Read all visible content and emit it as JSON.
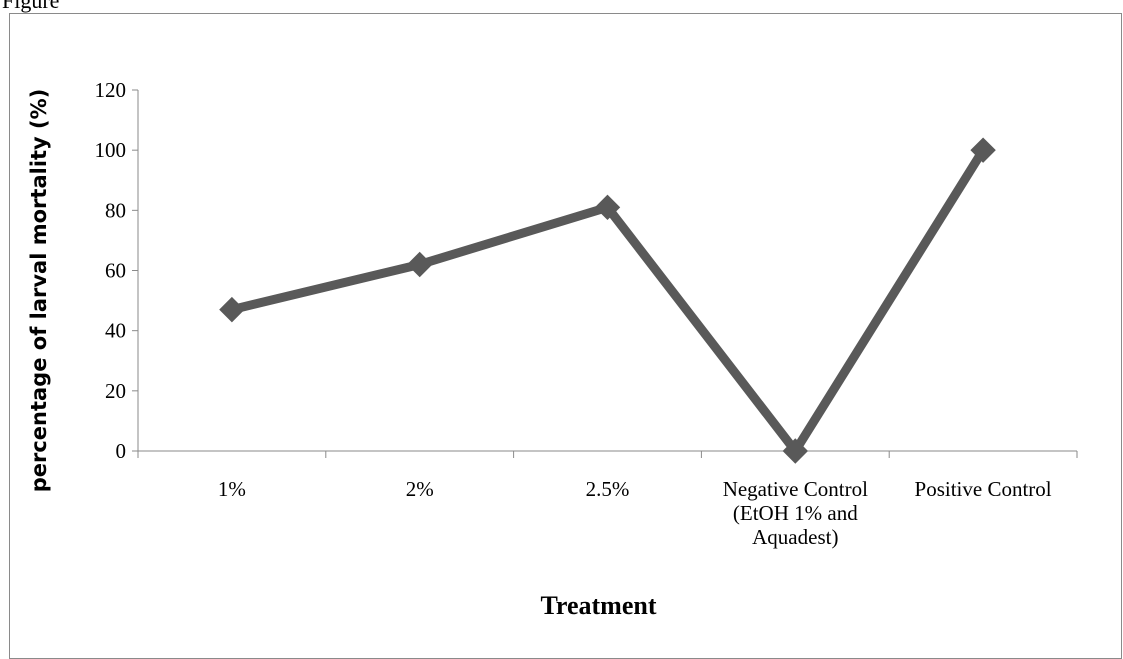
{
  "page": {
    "caption": "Figure"
  },
  "chart_data": {
    "type": "line",
    "categories": [
      "1%",
      "2%",
      "2.5%",
      "Negative Control (EtOH 1% and Aquadest)",
      "Positive Control"
    ],
    "category_label_lines": [
      [
        "1%"
      ],
      [
        "2%"
      ],
      [
        "2.5%"
      ],
      [
        "Negative Control",
        "(EtOH 1% and",
        "Aquadest)"
      ],
      [
        "Positive Control"
      ]
    ],
    "series": [
      {
        "values": [
          47,
          62,
          81,
          0,
          100
        ],
        "color": "#595959",
        "marker": "diamond"
      }
    ],
    "xlabel": "Treatment",
    "ylabel": "percentage of larval mortality (%)",
    "ylim": [
      0,
      120
    ],
    "yticks": [
      0,
      20,
      40,
      60,
      80,
      100,
      120
    ],
    "grid": false,
    "legend": "none"
  }
}
